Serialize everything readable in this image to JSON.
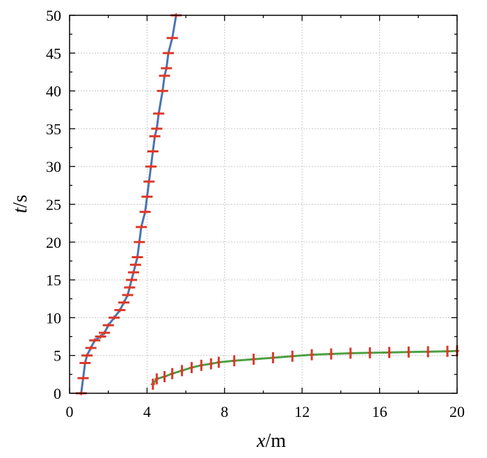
{
  "chart_data": {
    "type": "line",
    "xlabel": {
      "var": "x",
      "unit": "/m"
    },
    "ylabel": {
      "var": "t",
      "unit": "/s"
    },
    "xlim": [
      0,
      20
    ],
    "ylim": [
      0,
      50
    ],
    "xticks": [
      0,
      4,
      8,
      12,
      16,
      20
    ],
    "yticks": [
      0,
      5,
      10,
      15,
      20,
      25,
      30,
      35,
      40,
      45,
      50
    ],
    "xtick_labels": [
      "0",
      "4",
      "8",
      "12",
      "16",
      "20"
    ],
    "ytick_labels": [
      "0",
      "5",
      "10",
      "15",
      "20",
      "25",
      "30",
      "35",
      "40",
      "45",
      "50"
    ],
    "grid": true,
    "series": [
      {
        "color": "#4a74b5",
        "marker": "horizontal-dash",
        "marker_color": "#d93a2b",
        "points": [
          [
            0.6,
            0
          ],
          [
            0.7,
            2
          ],
          [
            0.8,
            4
          ],
          [
            0.9,
            5
          ],
          [
            1.1,
            6
          ],
          [
            1.3,
            7
          ],
          [
            1.6,
            7.5
          ],
          [
            1.8,
            8
          ],
          [
            2.0,
            9
          ],
          [
            2.3,
            10
          ],
          [
            2.6,
            11
          ],
          [
            2.8,
            12
          ],
          [
            3.0,
            13
          ],
          [
            3.1,
            14
          ],
          [
            3.2,
            15
          ],
          [
            3.3,
            16
          ],
          [
            3.4,
            17
          ],
          [
            3.5,
            18
          ],
          [
            3.6,
            20
          ],
          [
            3.7,
            22
          ],
          [
            3.9,
            24
          ],
          [
            4.0,
            26
          ],
          [
            4.1,
            28
          ],
          [
            4.2,
            30
          ],
          [
            4.3,
            32
          ],
          [
            4.4,
            34
          ],
          [
            4.5,
            35
          ],
          [
            4.6,
            37
          ],
          [
            4.8,
            40
          ],
          [
            4.9,
            42
          ],
          [
            5.0,
            43
          ],
          [
            5.1,
            45
          ],
          [
            5.3,
            47
          ],
          [
            5.5,
            50
          ]
        ]
      },
      {
        "color": "#4aa043",
        "marker": "vertical-dash",
        "marker_color": "#d93a2b",
        "points": [
          [
            4.3,
            1.2
          ],
          [
            4.5,
            1.9
          ],
          [
            4.9,
            2.2
          ],
          [
            5.3,
            2.6
          ],
          [
            5.8,
            3.0
          ],
          [
            6.3,
            3.4
          ],
          [
            6.8,
            3.7
          ],
          [
            7.3,
            3.9
          ],
          [
            7.7,
            4.1
          ],
          [
            8.5,
            4.3
          ],
          [
            9.5,
            4.5
          ],
          [
            10.5,
            4.7
          ],
          [
            11.5,
            4.9
          ],
          [
            12.5,
            5.1
          ],
          [
            13.5,
            5.2
          ],
          [
            14.5,
            5.3
          ],
          [
            15.5,
            5.35
          ],
          [
            16.5,
            5.4
          ],
          [
            17.5,
            5.45
          ],
          [
            18.5,
            5.5
          ],
          [
            19.5,
            5.55
          ],
          [
            20.0,
            5.6
          ]
        ]
      }
    ]
  }
}
